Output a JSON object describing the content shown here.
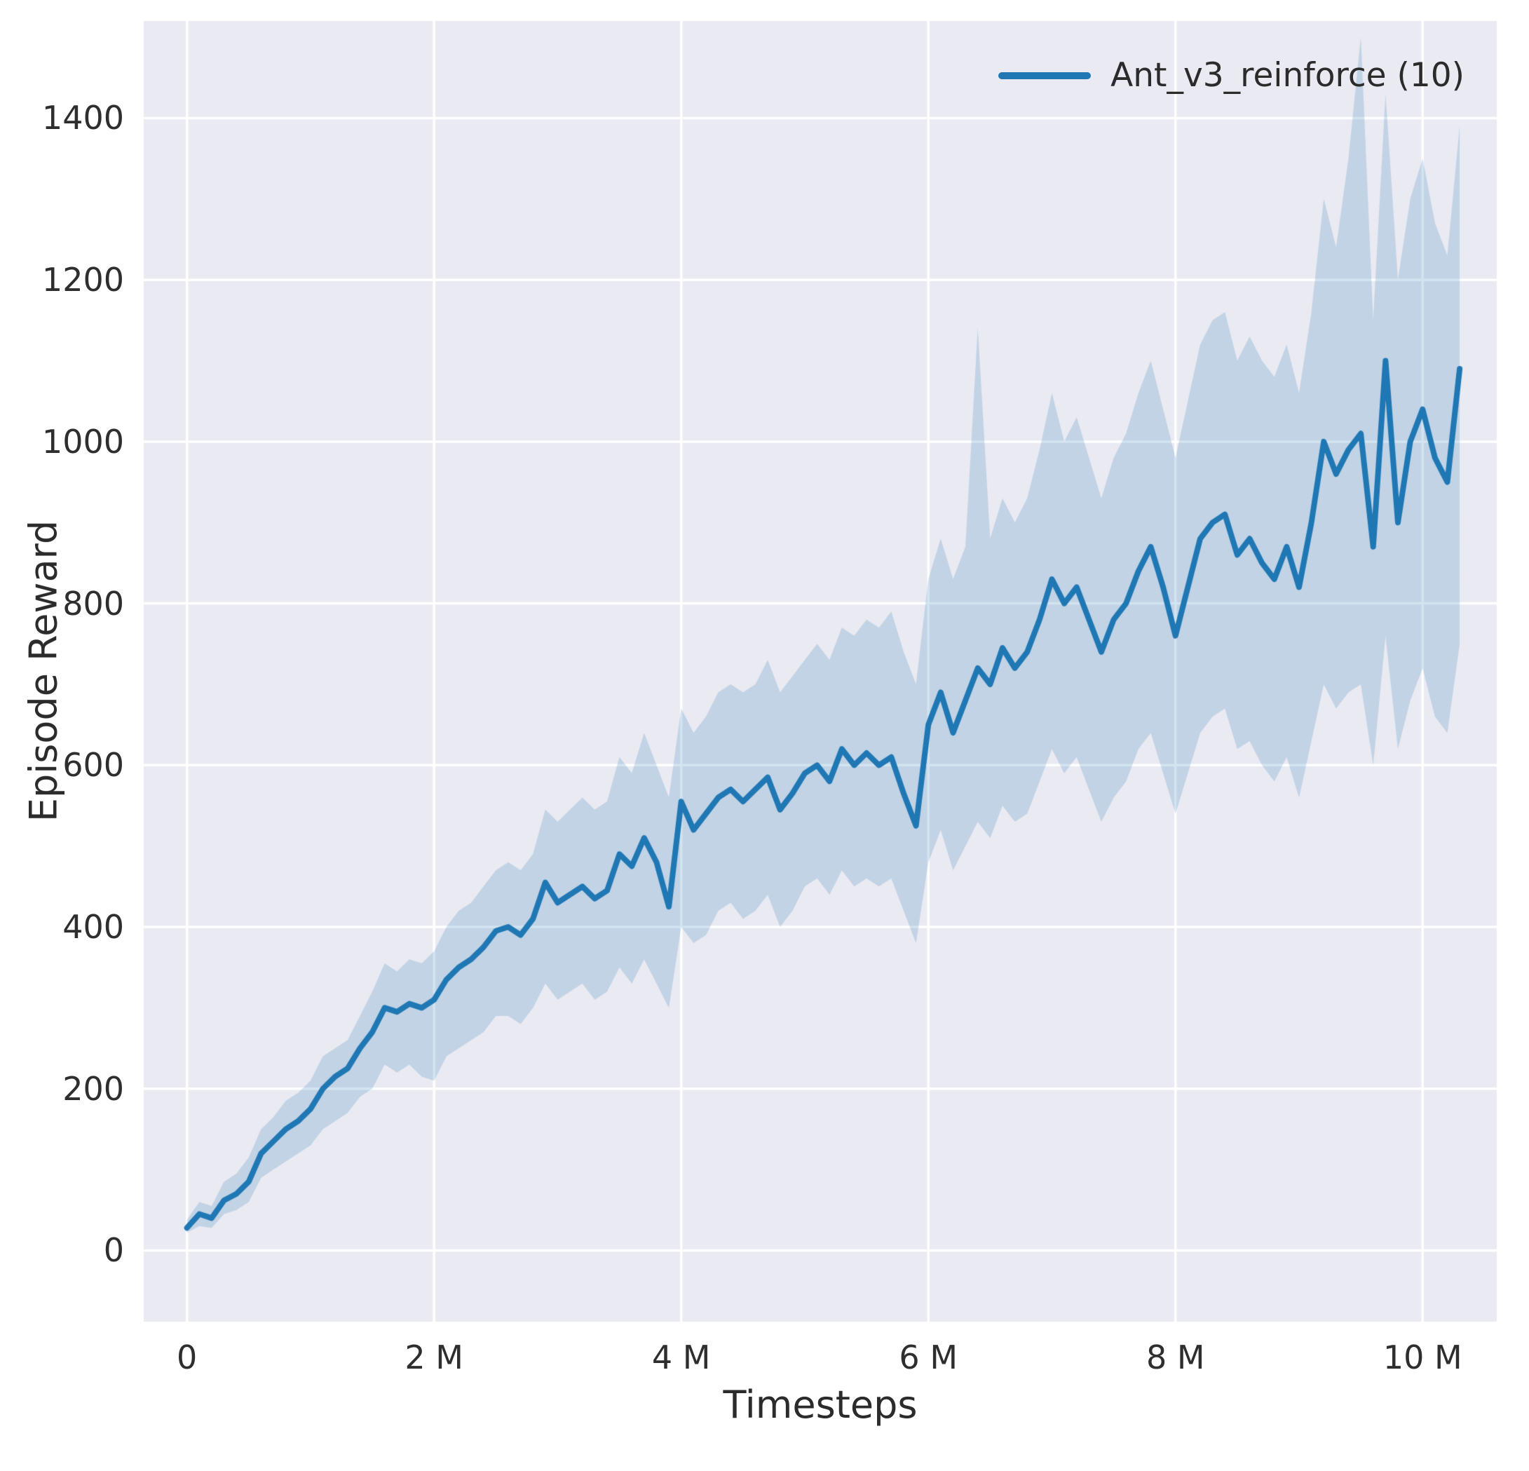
{
  "chart_data": {
    "type": "line",
    "title": "",
    "xlabel": "Timesteps",
    "ylabel": "Episode Reward",
    "legend_position": "upper right",
    "grid": true,
    "xlim_m": [
      -0.35,
      10.6
    ],
    "ylim": [
      -88,
      1520
    ],
    "xticks": [
      {
        "value": 0,
        "label": "0"
      },
      {
        "value": 2,
        "label": "2 M"
      },
      {
        "value": 4,
        "label": "4 M"
      },
      {
        "value": 6,
        "label": "6 M"
      },
      {
        "value": 8,
        "label": "8 M"
      },
      {
        "value": 10,
        "label": "10 M"
      }
    ],
    "yticks": [
      {
        "value": 0,
        "label": "0"
      },
      {
        "value": 200,
        "label": "200"
      },
      {
        "value": 400,
        "label": "400"
      },
      {
        "value": 600,
        "label": "600"
      },
      {
        "value": 800,
        "label": "800"
      },
      {
        "value": 1000,
        "label": "1000"
      },
      {
        "value": 1200,
        "label": "1200"
      },
      {
        "value": 1400,
        "label": "1400"
      }
    ],
    "x_start_m": 0,
    "x_step_m": 0.1,
    "series": [
      {
        "name": "Ant_v3_reinforce (10)",
        "mean": [
          28,
          45,
          40,
          62,
          70,
          85,
          120,
          135,
          150,
          160,
          175,
          200,
          215,
          225,
          250,
          270,
          300,
          295,
          305,
          300,
          310,
          335,
          350,
          360,
          375,
          395,
          400,
          390,
          410,
          455,
          430,
          440,
          450,
          435,
          445,
          490,
          475,
          510,
          480,
          425,
          555,
          520,
          540,
          560,
          570,
          555,
          570,
          585,
          545,
          565,
          590,
          600,
          580,
          620,
          600,
          615,
          600,
          610,
          565,
          525,
          650,
          690,
          640,
          680,
          720,
          700,
          745,
          720,
          740,
          780,
          830,
          800,
          820,
          780,
          740,
          780,
          800,
          840,
          870,
          820,
          760,
          820,
          880,
          900,
          910,
          860,
          880,
          850,
          830,
          870,
          820,
          900,
          1000,
          960,
          990,
          1010,
          870,
          1100,
          900,
          1000,
          1040,
          980,
          950,
          1090
        ],
        "lower": [
          22,
          30,
          28,
          45,
          50,
          60,
          90,
          100,
          110,
          120,
          130,
          150,
          160,
          170,
          190,
          200,
          230,
          220,
          230,
          215,
          210,
          240,
          250,
          260,
          270,
          290,
          290,
          280,
          300,
          330,
          310,
          320,
          330,
          310,
          320,
          350,
          330,
          360,
          330,
          300,
          400,
          380,
          390,
          420,
          430,
          410,
          420,
          440,
          400,
          420,
          450,
          460,
          440,
          470,
          450,
          460,
          450,
          460,
          420,
          380,
          480,
          520,
          470,
          500,
          530,
          510,
          550,
          530,
          540,
          580,
          620,
          590,
          610,
          570,
          530,
          560,
          580,
          620,
          640,
          590,
          540,
          590,
          640,
          660,
          670,
          620,
          630,
          600,
          580,
          610,
          560,
          630,
          700,
          670,
          690,
          700,
          600,
          760,
          620,
          680,
          720,
          660,
          640,
          750
        ],
        "upper": [
          38,
          60,
          55,
          85,
          95,
          115,
          150,
          165,
          185,
          195,
          210,
          240,
          250,
          260,
          290,
          320,
          355,
          345,
          360,
          355,
          370,
          400,
          420,
          430,
          450,
          470,
          480,
          470,
          490,
          545,
          530,
          545,
          560,
          545,
          555,
          610,
          590,
          640,
          600,
          560,
          670,
          640,
          660,
          690,
          700,
          690,
          700,
          730,
          690,
          710,
          730,
          750,
          730,
          770,
          760,
          780,
          770,
          790,
          740,
          700,
          830,
          880,
          830,
          870,
          1140,
          880,
          930,
          900,
          930,
          990,
          1060,
          1000,
          1030,
          980,
          930,
          980,
          1010,
          1060,
          1100,
          1040,
          980,
          1050,
          1120,
          1150,
          1160,
          1100,
          1130,
          1100,
          1080,
          1120,
          1060,
          1160,
          1300,
          1240,
          1350,
          1500,
          1150,
          1430,
          1200,
          1300,
          1350,
          1270,
          1230,
          1390
        ]
      }
    ],
    "styles": {
      "line_color": "#1f77b4",
      "band_color_rgb": "31,119,180",
      "band_alpha": 0.2,
      "axes_bg": "#eaeaf2",
      "grid_color": "#ffffff",
      "figure_bg": "#ffffff",
      "text_color": "#2b2b2b"
    }
  }
}
